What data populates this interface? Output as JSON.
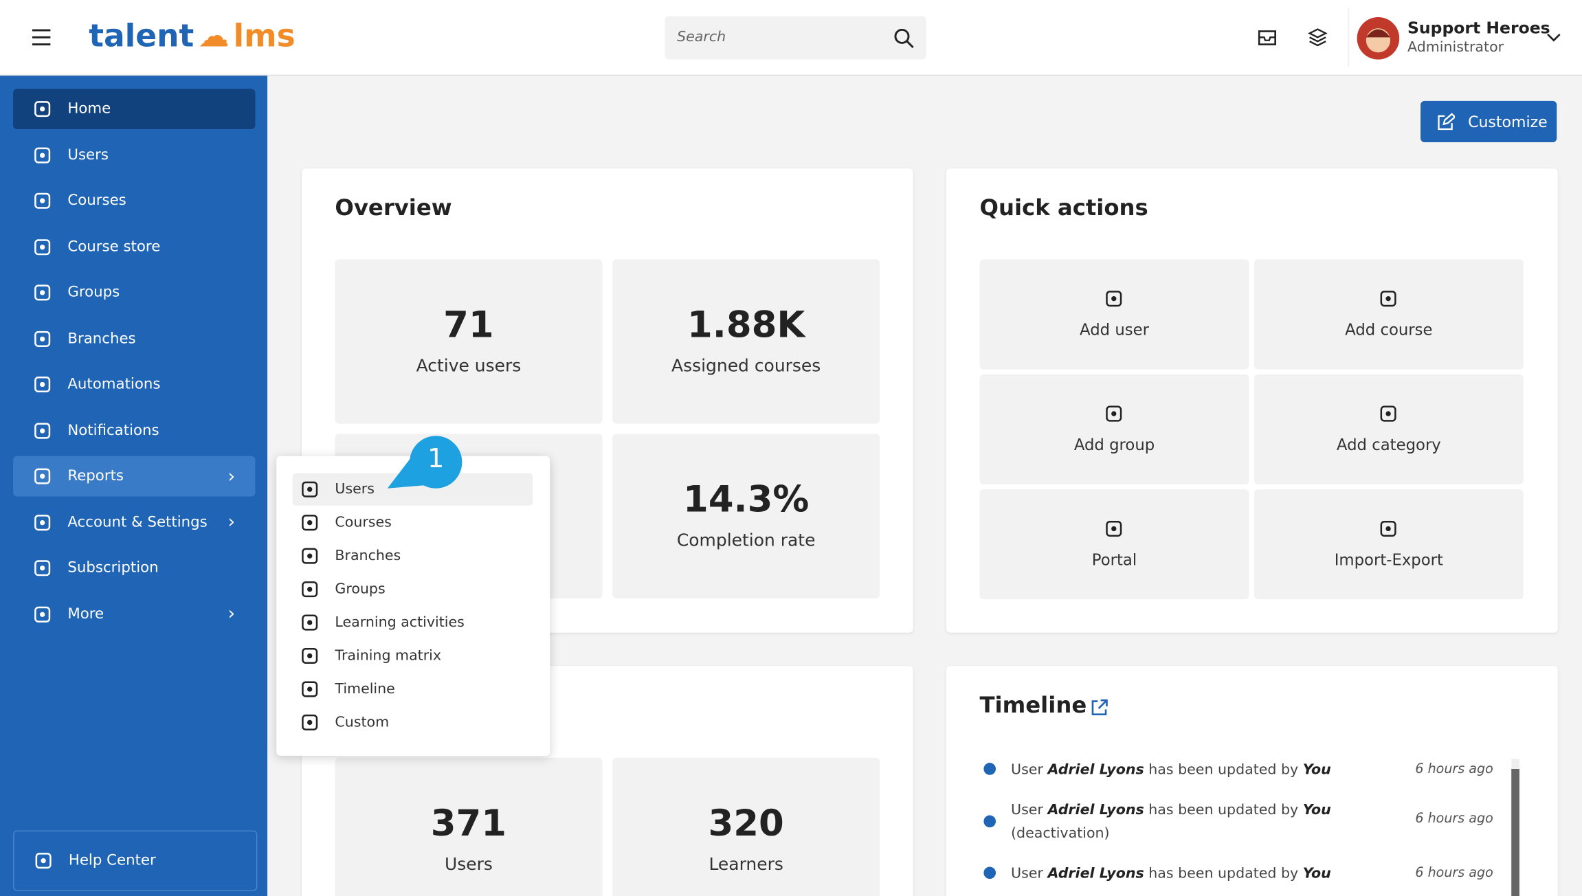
{
  "header": {
    "logo_left": "talent",
    "logo_right": "lms",
    "search_placeholder": "Search",
    "user_name": "Support Heroes",
    "user_role": "Administrator"
  },
  "sidebar": {
    "items": [
      "Home",
      "Users",
      "Courses",
      "Course store",
      "Groups",
      "Branches",
      "Automations",
      "Notifications",
      "Reports",
      "Account & Settings",
      "Subscription",
      "More"
    ],
    "help": "Help Center"
  },
  "customize": "Customize",
  "overview": {
    "title": "Overview",
    "stats": [
      {
        "value": "71",
        "label": "Active users"
      },
      {
        "value": "1.88K",
        "label": "Assigned courses"
      },
      {
        "value": "14.3%",
        "label": "Completion rate"
      }
    ]
  },
  "quick_actions": {
    "title": "Quick actions",
    "items": [
      "Add user",
      "Add course",
      "Add group",
      "Add category",
      "Portal",
      "Import-Export"
    ]
  },
  "lower_stats": [
    {
      "value": "371",
      "label": "Users"
    },
    {
      "value": "320",
      "label": "Learners"
    }
  ],
  "timeline": {
    "title": "Timeline",
    "entries": [
      {
        "parts": [
          "User ",
          "Adriel Lyons",
          " has been updated by ",
          "You"
        ],
        "time": "6 hours ago"
      },
      {
        "parts": [
          "User ",
          "Adriel Lyons",
          " has been updated by ",
          "You",
          " (deactivation)"
        ],
        "time": "6 hours ago"
      },
      {
        "parts": [
          "User ",
          "Adriel Lyons",
          " has been updated by ",
          "You"
        ],
        "time": "6 hours ago"
      }
    ]
  },
  "reports_menu": {
    "badge": "1",
    "items": [
      "Users",
      "Courses",
      "Branches",
      "Groups",
      "Learning activities",
      "Training matrix",
      "Timeline",
      "Custom"
    ]
  }
}
